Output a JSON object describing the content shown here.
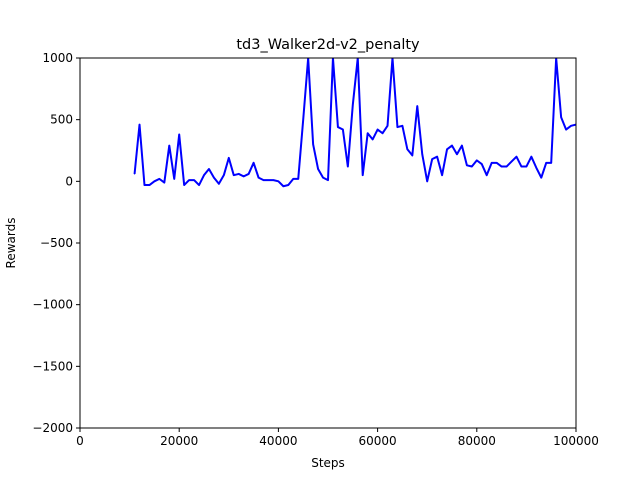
{
  "chart_data": {
    "type": "line",
    "title": "td3_Walker2d-v2_penalty",
    "xlabel": "Steps",
    "ylabel": "Rewards",
    "xlim": [
      0,
      100000
    ],
    "ylim": [
      -2000,
      1000
    ],
    "xticks": [
      0,
      20000,
      40000,
      60000,
      80000,
      100000
    ],
    "xtick_labels": [
      "0",
      "20000",
      "40000",
      "60000",
      "80000",
      "100000"
    ],
    "yticks": [
      -2000,
      -1500,
      -1000,
      -500,
      0,
      500,
      1000
    ],
    "ytick_labels": [
      "−2000",
      "−1500",
      "−1000",
      "−500",
      "0",
      "500",
      "1000"
    ],
    "grid": false,
    "legend": "none",
    "series": [
      {
        "color": "#0000ff",
        "x": [
          11000,
          12000,
          13000,
          14000,
          15000,
          16000,
          17000,
          18000,
          19000,
          20000,
          21000,
          22000,
          23000,
          24000,
          25000,
          26000,
          27000,
          28000,
          29000,
          30000,
          31000,
          32000,
          33000,
          34000,
          35000,
          36000,
          37000,
          38000,
          39000,
          40000,
          41000,
          42000,
          43000,
          44000,
          45000,
          46000,
          47000,
          48000,
          49000,
          50000,
          51000,
          52000,
          53000,
          54000,
          55000,
          56000,
          57000,
          58000,
          59000,
          60000,
          61000,
          62000,
          63000,
          64000,
          65000,
          66000,
          67000,
          68000,
          69000,
          70000,
          71000,
          72000,
          73000,
          74000,
          75000,
          76000,
          77000,
          78000,
          79000,
          80000,
          81000,
          82000,
          83000,
          84000,
          85000,
          86000,
          87000,
          88000,
          89000,
          90000,
          91000,
          92000,
          93000,
          94000,
          95000,
          96000,
          97000,
          98000,
          99000,
          100000
        ],
        "y": [
          60,
          460,
          -30,
          -30,
          0,
          20,
          -10,
          290,
          20,
          380,
          -30,
          10,
          10,
          -30,
          50,
          100,
          30,
          -20,
          50,
          190,
          50,
          60,
          40,
          60,
          150,
          30,
          10,
          10,
          10,
          0,
          -40,
          -30,
          20,
          20,
          500,
          1000,
          300,
          100,
          30,
          10,
          1000,
          440,
          420,
          120,
          620,
          1000,
          50,
          390,
          340,
          420,
          390,
          450,
          1000,
          440,
          450,
          260,
          210,
          610,
          220,
          0,
          180,
          200,
          50,
          260,
          290,
          220,
          290,
          130,
          120,
          170,
          140,
          50,
          150,
          150,
          120,
          120,
          160,
          200,
          120,
          120,
          200,
          110,
          30,
          150,
          150,
          1000,
          520,
          420,
          450,
          460
        ]
      }
    ]
  }
}
